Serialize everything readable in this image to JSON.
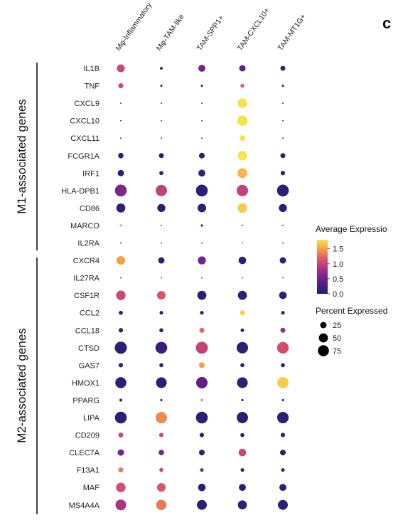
{
  "panel_label": "c",
  "chart_data": {
    "type": "dotplot",
    "categories": [
      "Mφ-Inflammatory",
      "Mφ-TAM-like",
      "TAM-SPP1+",
      "TAM-CXCL10+",
      "TAM-MT1G+"
    ],
    "genes": [
      "IL1B",
      "TNF",
      "CXCL9",
      "CXCL10",
      "CXCL11",
      "FCGR1A",
      "IRF1",
      "HLA-DPB1",
      "CD86",
      "MARCO",
      "IL2RA",
      "CXCR4",
      "IL27RA",
      "CSF1R",
      "CCL2",
      "CCL18",
      "CTSD",
      "GAS7",
      "HMOX1",
      "PPARG",
      "LIPA",
      "CD209",
      "CLEC7A",
      "F13A1",
      "MAF",
      "MS4A4A"
    ],
    "groups": [
      {
        "label": "M1-associated genes",
        "genes": [
          "IL1B",
          "TNF",
          "CXCL9",
          "CXCL10",
          "CXCL11",
          "FCGR1A",
          "IRF1",
          "HLA-DPB1",
          "CD86",
          "MARCO",
          "IL2RA"
        ]
      },
      {
        "label": "M2-associated genes",
        "genes": [
          "CXCR4",
          "IL27RA",
          "CSF1R",
          "CCL2",
          "CCL18",
          "CTSD",
          "GAS7",
          "HMOX1",
          "PPARG",
          "LIPA",
          "CD209",
          "CLEC7A",
          "F13A1",
          "MAF",
          "MS4A4A"
        ]
      }
    ],
    "percent": [
      [
        38,
        5,
        30,
        25,
        15
      ],
      [
        15,
        3,
        3,
        10,
        3
      ],
      [
        1,
        1,
        1,
        55,
        1
      ],
      [
        1,
        1,
        1,
        65,
        1
      ],
      [
        1,
        1,
        1,
        20,
        1
      ],
      [
        18,
        15,
        20,
        55,
        15
      ],
      [
        25,
        10,
        30,
        60,
        12
      ],
      [
        85,
        78,
        85,
        80,
        85
      ],
      [
        50,
        40,
        45,
        55,
        40
      ],
      [
        3,
        1,
        3,
        1,
        1
      ],
      [
        1,
        1,
        1,
        1,
        1
      ],
      [
        45,
        25,
        40,
        35,
        25
      ],
      [
        1,
        1,
        1,
        1,
        1
      ],
      [
        55,
        45,
        50,
        50,
        35
      ],
      [
        10,
        8,
        8,
        15,
        8
      ],
      [
        12,
        10,
        15,
        8,
        15
      ],
      [
        90,
        85,
        88,
        80,
        82
      ],
      [
        12,
        10,
        20,
        10,
        10
      ],
      [
        75,
        70,
        80,
        70,
        78
      ],
      [
        5,
        3,
        3,
        3,
        3
      ],
      [
        85,
        80,
        85,
        78,
        80
      ],
      [
        15,
        12,
        12,
        10,
        12
      ],
      [
        25,
        18,
        20,
        35,
        20
      ],
      [
        15,
        10,
        8,
        8,
        8
      ],
      [
        55,
        45,
        35,
        30,
        30
      ],
      [
        70,
        65,
        60,
        50,
        60
      ]
    ],
    "expression": [
      [
        1.0,
        0.1,
        0.5,
        0.4,
        0.15
      ],
      [
        1.0,
        0.1,
        0.1,
        1.2,
        0.1
      ],
      [
        0.0,
        0.0,
        0.0,
        1.8,
        0.0
      ],
      [
        0.0,
        0.0,
        0.0,
        1.8,
        0.0
      ],
      [
        0.0,
        0.0,
        0.0,
        1.8,
        0.0
      ],
      [
        0.1,
        0.1,
        0.1,
        1.8,
        0.1
      ],
      [
        0.1,
        0.1,
        0.15,
        1.6,
        0.1
      ],
      [
        0.55,
        0.95,
        0.1,
        0.95,
        0.1
      ],
      [
        0.1,
        0.1,
        0.1,
        1.7,
        0.1
      ],
      [
        1.5,
        0.0,
        0.0,
        0.0,
        0.0
      ],
      [
        0.0,
        0.0,
        0.0,
        0.0,
        0.0
      ],
      [
        1.5,
        0.1,
        0.5,
        0.1,
        0.1
      ],
      [
        0.0,
        0.0,
        0.0,
        0.0,
        0.0
      ],
      [
        1.0,
        1.1,
        0.1,
        0.1,
        0.1
      ],
      [
        0.1,
        0.1,
        0.1,
        1.7,
        0.1
      ],
      [
        0.1,
        0.1,
        1.2,
        0.1,
        0.7
      ],
      [
        0.1,
        0.15,
        0.95,
        0.1,
        1.05
      ],
      [
        0.1,
        0.1,
        1.5,
        0.1,
        0.1
      ],
      [
        0.1,
        0.1,
        0.4,
        0.1,
        1.7
      ],
      [
        0.1,
        0.1,
        1.3,
        0.1,
        0.1
      ],
      [
        0.1,
        1.4,
        0.1,
        0.1,
        0.1
      ],
      [
        1.0,
        1.0,
        0.1,
        0.1,
        0.1
      ],
      [
        0.5,
        0.5,
        0.1,
        1.0,
        0.1
      ],
      [
        1.3,
        1.0,
        0.5,
        0.1,
        0.1
      ],
      [
        1.05,
        1.1,
        0.1,
        0.1,
        0.1
      ],
      [
        0.8,
        1.3,
        0.1,
        0.1,
        0.1
      ]
    ],
    "colorbar": {
      "title": "Average Expressio",
      "ticks": [
        "1.5",
        "1.0",
        "0.5",
        "0.0"
      ],
      "min": 0,
      "max": 1.8
    },
    "size_legend": {
      "title": "Percent Expressed",
      "ticks": [
        {
          "label": "25",
          "value": 25
        },
        {
          "label": "50",
          "value": 50
        },
        {
          "label": "75",
          "value": 75
        }
      ]
    },
    "palette": [
      "#1d1f6e",
      "#5b1d8a",
      "#9b2c8c",
      "#d8506e",
      "#f4924a",
      "#f7e34a"
    ]
  }
}
